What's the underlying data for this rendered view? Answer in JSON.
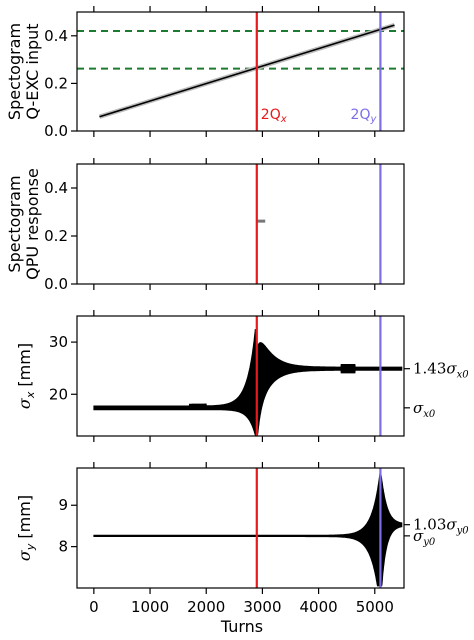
{
  "figure": {
    "xlabel": "Turns",
    "xticks": [
      0,
      1000,
      2000,
      3000,
      4000,
      5000
    ],
    "xlim": [
      -300,
      5520
    ]
  },
  "colors": {
    "qx_line": "#e8191c",
    "qy_line": "#7b6ee8",
    "dashed": "#1e7a2e",
    "trace": "#000000"
  },
  "markers": {
    "qx_turn": 2900,
    "qy_turn": 5100,
    "qx_label": "2Q",
    "qx_sub": "x",
    "qy_label": "2Q",
    "qy_sub": "y"
  },
  "chart_data": [
    {
      "type": "line",
      "panel": "q-exc-input",
      "ylabel_line1": "Spectogram",
      "ylabel_line2": "Q-EXC input",
      "ylim": [
        0,
        0.5
      ],
      "yticks": [
        0.0,
        0.2,
        0.4
      ],
      "ytick_labels": [
        "0.0",
        "0.2",
        "0.4"
      ],
      "hlines_dashed": [
        0.42,
        0.262
      ],
      "series": [
        {
          "x": [
            100,
            5350
          ],
          "y": [
            0.06,
            0.445
          ]
        }
      ]
    },
    {
      "type": "line",
      "panel": "qpu-response",
      "ylabel_line1": "Spectogram",
      "ylabel_line2": "QPU response",
      "ylim": [
        0,
        0.5
      ],
      "yticks": [
        0.0,
        0.2,
        0.4
      ],
      "ytick_labels": [
        "0.0",
        "0.2",
        "0.4"
      ],
      "series": [
        {
          "x": [
            2900,
            3050
          ],
          "y": [
            0.262,
            0.262
          ]
        }
      ]
    },
    {
      "type": "line",
      "panel": "sigma-x",
      "ylabel_main": "σ",
      "ylabel_sub": "x",
      "ylabel_unit": " [mm]",
      "ylim": [
        12,
        35
      ],
      "yticks": [
        20,
        30
      ],
      "ytick_labels": [
        "20",
        "30"
      ],
      "right_labels": [
        {
          "y": 24.9,
          "text": "1.43σ",
          "sub": "x0"
        },
        {
          "y": 17.4,
          "text": "σ",
          "sub": "x0"
        }
      ],
      "baseline": 17.4,
      "final": 24.9,
      "peak_turn": 2880,
      "peak_high": 34.5,
      "peak_low": 12.2
    },
    {
      "type": "line",
      "panel": "sigma-y",
      "ylabel_main": "σ",
      "ylabel_sub": "y",
      "ylabel_unit": " [mm]",
      "ylim": [
        7.0,
        9.9
      ],
      "yticks": [
        8,
        9
      ],
      "ytick_labels": [
        "8",
        "9"
      ],
      "right_labels": [
        {
          "y": 8.53,
          "text": "1.03σ",
          "sub": "y0"
        },
        {
          "y": 8.26,
          "text": "σ",
          "sub": "y0"
        }
      ],
      "baseline": 8.26,
      "final": 8.53,
      "peak_turn": 5100,
      "peak_high": 9.85,
      "peak_low": 7.05
    }
  ]
}
